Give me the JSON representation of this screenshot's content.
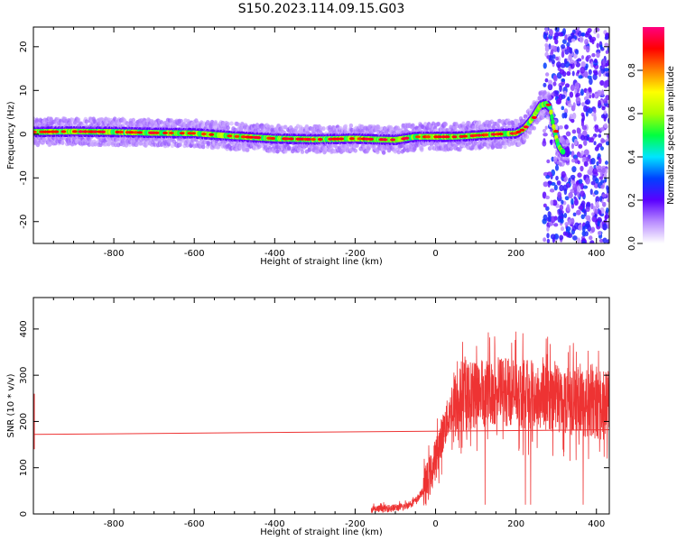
{
  "title": "S150.2023.114.09.15.G03",
  "chart_data": [
    {
      "type": "heatmap",
      "title": "S150.2023.114.09.15.G03",
      "xlabel": "Height of straight line (km)",
      "ylabel": "Frequency (Hz)",
      "xlim": [
        -1000,
        432
      ],
      "ylim": [
        -25,
        24.5
      ],
      "x_ticks": [
        -800,
        -600,
        -400,
        -200,
        0,
        200,
        400
      ],
      "y_ticks": [
        20,
        10,
        0,
        -10,
        -20
      ],
      "grid": false,
      "colorbar": {
        "label": "Normalized spectral amplitude",
        "range": [
          0,
          1
        ],
        "ticks": [
          0.0,
          0.2,
          0.4,
          0.6,
          0.8
        ],
        "colors": [
          "#ffffff",
          "#b98cff",
          "#5a00ff",
          "#0040ff",
          "#00e5ff",
          "#00ff40",
          "#aaff00",
          "#ffff00",
          "#ff8000",
          "#ff0000",
          "#ff0080"
        ]
      },
      "ridge": {
        "description_values": "peak frequency (Hz) vs height (km)",
        "x": [
          -1000,
          -900,
          -800,
          -700,
          -600,
          -500,
          -400,
          -300,
          -200,
          -150,
          -100,
          -50,
          0,
          50,
          100,
          150,
          200,
          220,
          240,
          260,
          275,
          285,
          295,
          305,
          315
        ],
        "y": [
          0.5,
          0.6,
          0.5,
          0.3,
          0.2,
          -0.5,
          -1.0,
          -1.2,
          -1.0,
          -1.2,
          -1.3,
          -0.6,
          -0.6,
          -0.6,
          -0.3,
          0.0,
          0.2,
          1.2,
          3.5,
          6.5,
          7.0,
          6.0,
          1.0,
          -2.5,
          -4.0
        ]
      },
      "noise_region_x": [
        270,
        432
      ]
    },
    {
      "type": "line",
      "xlabel": "Height of straight line (km)",
      "ylabel": "SNR (10 * v/v)",
      "xlim": [
        -1000,
        432
      ],
      "ylim": [
        0,
        468
      ],
      "x_ticks": [
        -800,
        -600,
        -400,
        -200,
        0,
        200,
        400
      ],
      "y_ticks": [
        0,
        100,
        200,
        300,
        400
      ],
      "grid": false,
      "color": "#ee3333",
      "reference_line": {
        "x": [
          -1000,
          432
        ],
        "y": [
          172,
          182
        ]
      },
      "envelope": {
        "x": [
          -160,
          -120,
          -80,
          -50,
          -30,
          -10,
          0,
          10,
          20,
          30,
          40,
          60,
          80,
          100,
          120,
          150,
          180,
          200,
          240,
          280,
          320,
          360,
          400,
          432
        ],
        "y": [
          10,
          12,
          15,
          28,
          50,
          90,
          120,
          150,
          180,
          205,
          225,
          245,
          255,
          260,
          262,
          265,
          265,
          262,
          258,
          255,
          248,
          242,
          235,
          232
        ]
      }
    }
  ]
}
